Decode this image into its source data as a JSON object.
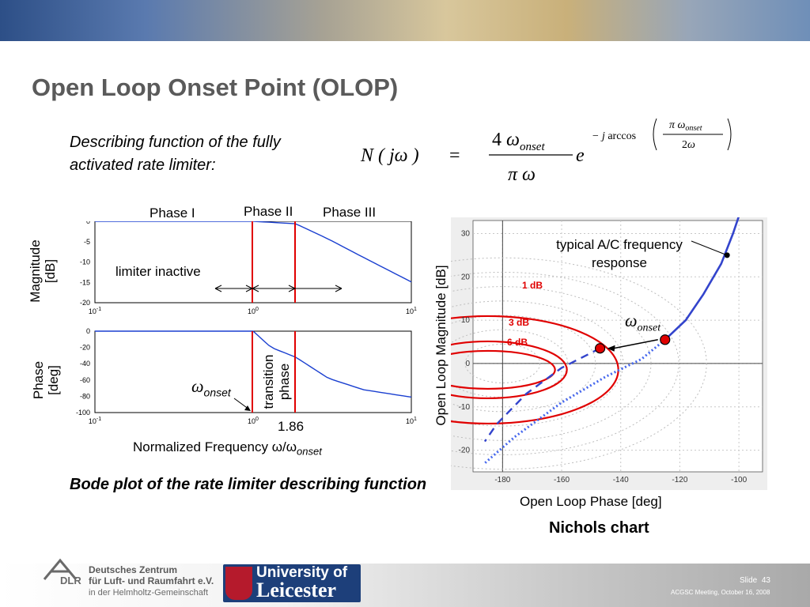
{
  "slide": {
    "title": "Open Loop Onset Point (OLOP)",
    "intro": "Describing function of the fully activated rate limiter:",
    "equation_text": "N(jω) = (4 ω_onset)/(π ω) e^(−j arccos(π ω_onset / 2ω))",
    "bode_caption": "Bode plot of the rate limiter describing function",
    "nichols_caption": "Nichols chart"
  },
  "bode": {
    "phase_labels": [
      "Phase I",
      "Phase II",
      "Phase III"
    ],
    "magnitude_ylabel": "Magnitude [dB]",
    "phase_ylabel": "Phase [deg]",
    "limiter_text": "limiter inactive",
    "transition_text": "transition phase",
    "omega_label": "ω",
    "omega_sub": "onset",
    "value_186": "1.86",
    "xlabel": "Normalized Frequency ω/ω",
    "xlabel_sub": "onset",
    "mag_ticks": [
      "0",
      "-5",
      "-10",
      "-15",
      "-20"
    ],
    "phase_ticks": [
      "0",
      "-20",
      "-40",
      "-60",
      "-80",
      "-100"
    ],
    "x_ticks_base": [
      "10",
      "10",
      "10"
    ],
    "x_ticks_exp": [
      "-1",
      "0",
      "1"
    ]
  },
  "nichols": {
    "ylabel": "Open Loop Magnitude [dB]",
    "xlabel": "Open Loop Phase [deg]",
    "y_ticks": [
      "30",
      "20",
      "10",
      "0",
      "-10",
      "-20"
    ],
    "x_ticks": [
      "-180",
      "-160",
      "-140",
      "-120",
      "-100"
    ],
    "contour_labels": [
      "1 dB",
      "3 dB",
      "6 dB"
    ],
    "annotation": "typical A/C frequency response",
    "omega_label": "ω",
    "omega_sub": "onset"
  },
  "footer": {
    "dlr_line1": "Deutsches Zentrum",
    "dlr_line2": "für Luft- und Raumfahrt e.V.",
    "dlr_line3": "in der Helmholtz-Gemeinschaft",
    "dlr_abbr": "DLR",
    "uol_line1": "University of",
    "uol_line2": "Leicester",
    "slide_label": "Slide",
    "slide_number": "43",
    "meeting": "ACGSC Meeting, October 16, 2008"
  },
  "chart_data": [
    {
      "type": "line",
      "name": "Bode magnitude",
      "x_scale": "log",
      "xlim": [
        0.1,
        10
      ],
      "ylim": [
        -20,
        0
      ],
      "x": [
        0.1,
        1,
        1.86,
        3,
        5,
        10
      ],
      "y": [
        0,
        0,
        -0.6,
        -4.4,
        -8.9,
        -14.9
      ]
    },
    {
      "type": "line",
      "name": "Bode phase",
      "x_scale": "log",
      "xlim": [
        0.1,
        10
      ],
      "ylim": [
        -100,
        0
      ],
      "x": [
        0.1,
        1,
        1.3,
        1.86,
        3,
        5,
        10
      ],
      "y": [
        0,
        0,
        -20,
        -32,
        -58,
        -72,
        -81
      ]
    },
    {
      "type": "line",
      "name": "Nichols chart",
      "xlim": [
        -190,
        -92
      ],
      "ylim": [
        -25,
        33
      ],
      "grid": true,
      "contours_closed_loop_db": [
        1,
        3,
        6
      ],
      "points": [
        {
          "phase": -125,
          "magnitude": 5.5
        },
        {
          "phase": -147,
          "magnitude": 3.5
        }
      ]
    }
  ]
}
